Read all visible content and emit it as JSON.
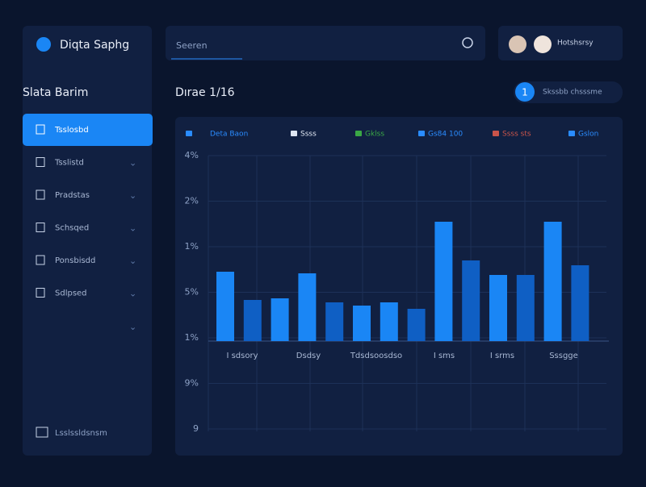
{
  "brand": "Diqta Saphg",
  "search": {
    "placeholder": "Seeren"
  },
  "profile": {
    "name": "Hotshsrsy"
  },
  "sidebar": {
    "heading": "Slata Barim",
    "items": [
      "Tsslosbd",
      "Tsslistd",
      "Pradstas",
      "Schsqed",
      "Ponsbisdd",
      "Sdlpsed"
    ],
    "footer": "Lsslssldsnsm"
  },
  "panel": {
    "title": "Dırae 1/16",
    "badge": "1",
    "badge_text": "Skssbb chsssme"
  },
  "chart_data": {
    "type": "bar",
    "legend": [
      {
        "name": "Deta Baon",
        "color": "#2a8cff"
      },
      {
        "name": "Ssss",
        "color": "#dfe6f2"
      },
      {
        "name": "Gklss",
        "color": "#3aa845"
      },
      {
        "name": "Gs84 100",
        "color": "#2a8cff"
      },
      {
        "name": "Ssss sts",
        "color": "#c9544a"
      },
      {
        "name": "Gslon",
        "color": "#2a8cff"
      }
    ],
    "y_labels": [
      "4%",
      "2%",
      "1%",
      "5%",
      "1%",
      "9%",
      "9"
    ],
    "x_labels": [
      "I sdsory",
      "Dsdsy",
      "Tdsdsoosdso",
      "I sms",
      "I srms",
      "Sssgge"
    ],
    "ylim": [
      0,
      230
    ],
    "values": [
      86,
      51,
      53,
      84,
      48,
      44,
      48,
      40,
      148,
      100,
      82,
      82,
      148,
      94
    ],
    "colors": [
      "#1a86f5",
      "#0f5fc4",
      "#1a86f5",
      "#1a86f5",
      "#0f5fc4",
      "#1a86f5",
      "#1a86f5",
      "#0f5fc4",
      "#1a86f5",
      "#0f5fc4",
      "#1a86f5",
      "#0f5fc4",
      "#1a86f5",
      "#0f5fc4"
    ]
  }
}
